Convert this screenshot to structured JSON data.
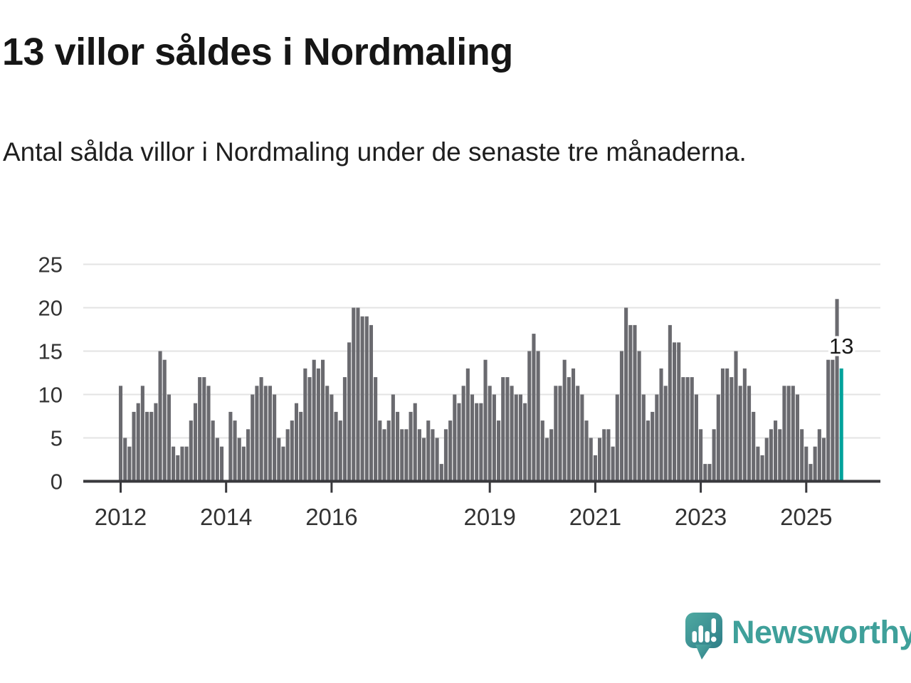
{
  "title": "13 villor såldes i Nordmaling",
  "subtitle": "Antal sålda villor i Nordmaling under de senaste tre månaderna.",
  "annotation": {
    "label": "13",
    "value": 13
  },
  "watermark": {
    "brand": "Newsworthy"
  },
  "colors": {
    "bar": "#6a6a6f",
    "highlight": "#00a29b",
    "grid": "#e3e3e3",
    "axis": "#38383c",
    "tick_label": "#333333",
    "annotation_text": "#191919",
    "logo_teal_light": "#4faaa2",
    "logo_teal_dark": "#2f7e88",
    "brand_text": "#3fa09a"
  },
  "chart_data": {
    "type": "bar",
    "title": "13 villor såldes i Nordmaling",
    "xlabel": "",
    "ylabel": "",
    "frequency": "monthly",
    "x_start": "2012-01",
    "x_end": "2025-09",
    "ylim": [
      0,
      25
    ],
    "yticks": [
      0,
      5,
      10,
      15,
      20,
      25
    ],
    "xticks": [
      {
        "label": "2012",
        "month_index": 0
      },
      {
        "label": "2014",
        "month_index": 24
      },
      {
        "label": "2016",
        "month_index": 48
      },
      {
        "label": "2019",
        "month_index": 84
      },
      {
        "label": "2021",
        "month_index": 108
      },
      {
        "label": "2023",
        "month_index": 132
      },
      {
        "label": "2025",
        "month_index": 156
      }
    ],
    "grid": "horizontal",
    "legend": "none",
    "highlight_last": true,
    "highlight_index": 164,
    "highlight_value": 13,
    "values": [
      11,
      5,
      4,
      8,
      9,
      11,
      8,
      8,
      9,
      15,
      14,
      10,
      4,
      3,
      4,
      4,
      7,
      9,
      12,
      12,
      11,
      7,
      5,
      4,
      0,
      8,
      7,
      5,
      4,
      6,
      10,
      11,
      12,
      11,
      11,
      10,
      5,
      4,
      6,
      7,
      9,
      8,
      13,
      12,
      14,
      13,
      14,
      11,
      10,
      8,
      7,
      12,
      16,
      20,
      20,
      19,
      19,
      18,
      12,
      7,
      6,
      7,
      10,
      8,
      6,
      6,
      8,
      9,
      6,
      5,
      7,
      6,
      5,
      2,
      6,
      7,
      10,
      9,
      11,
      13,
      10,
      9,
      9,
      14,
      11,
      10,
      7,
      12,
      12,
      11,
      10,
      10,
      9,
      15,
      17,
      15,
      7,
      5,
      6,
      11,
      11,
      14,
      12,
      13,
      11,
      10,
      7,
      5,
      3,
      5,
      6,
      6,
      4,
      10,
      15,
      20,
      18,
      18,
      15,
      10,
      7,
      8,
      10,
      13,
      11,
      18,
      16,
      16,
      12,
      12,
      12,
      10,
      6,
      2,
      2,
      6,
      10,
      13,
      13,
      12,
      15,
      11,
      13,
      11,
      8,
      4,
      3,
      5,
      6,
      7,
      6,
      11,
      11,
      11,
      10,
      6,
      4,
      2,
      4,
      6,
      5,
      14,
      14,
      21,
      13
    ]
  }
}
